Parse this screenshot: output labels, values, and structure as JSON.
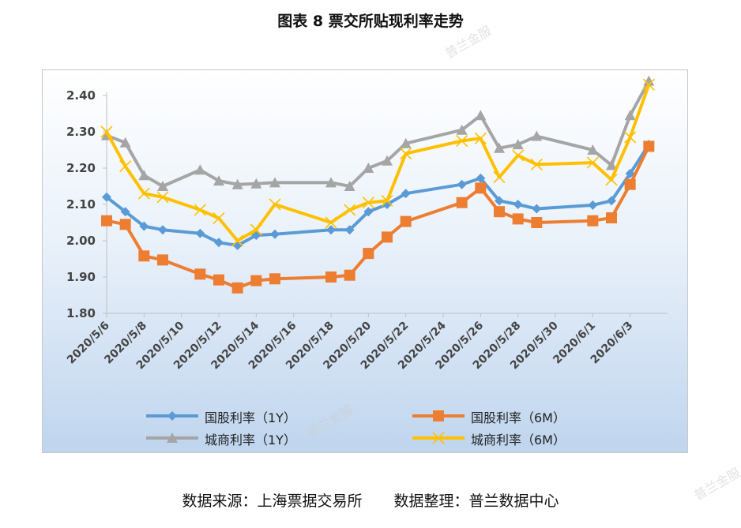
{
  "title": "图表 8 票交所贴现利率走势",
  "watermark": "普兰金服",
  "source_left": "数据来源：上海票据交易所",
  "source_right": "数据整理：普兰数据中心",
  "chart_data": {
    "type": "line",
    "title": "图表 8 票交所贴现利率走势",
    "xlabel": "",
    "ylabel": "",
    "ylim": [
      1.8,
      2.4
    ],
    "yticks": [
      "2.40",
      "2.30",
      "2.20",
      "2.10",
      "2.00",
      "1.90",
      "1.80"
    ],
    "x": [
      "2020/5/6",
      "2020/5/7",
      "2020/5/8",
      "2020/5/9",
      "2020/5/11",
      "2020/5/12",
      "2020/5/13",
      "2020/5/14",
      "2020/5/15",
      "2020/5/18",
      "2020/5/19",
      "2020/5/20",
      "2020/5/21",
      "2020/5/22",
      "2020/5/25",
      "2020/5/26",
      "2020/5/27",
      "2020/5/28",
      "2020/5/29",
      "2020/6/1",
      "2020/6/2",
      "2020/6/3",
      "2020/6/4"
    ],
    "x_day_index": [
      0,
      1,
      2,
      3,
      5,
      6,
      7,
      8,
      9,
      12,
      13,
      14,
      15,
      16,
      19,
      20,
      21,
      22,
      23,
      26,
      27,
      28,
      29
    ],
    "tick_labels": [
      "2020/5/6",
      "2020/5/8",
      "2020/5/10",
      "2020/5/12",
      "2020/5/14",
      "2020/5/16",
      "2020/5/18",
      "2020/5/20",
      "2020/5/22",
      "2020/5/24",
      "2020/5/26",
      "2020/5/28",
      "2020/5/30",
      "2020/6/1",
      "2020/6/3"
    ],
    "grid": false,
    "legend_position": "bottom",
    "series": [
      {
        "name": "国股利率（1Y）",
        "color": "#5b9bd5",
        "marker": "diamond",
        "values": [
          2.12,
          2.08,
          2.04,
          2.03,
          2.02,
          1.995,
          1.987,
          2.015,
          2.018,
          2.03,
          2.03,
          2.08,
          2.1,
          2.13,
          2.155,
          2.172,
          2.11,
          2.1,
          2.088,
          2.098,
          2.11,
          2.185,
          2.265
        ]
      },
      {
        "name": "国股利率（6M）",
        "color": "#ed7d31",
        "marker": "square",
        "values": [
          2.055,
          2.045,
          1.958,
          1.947,
          1.908,
          1.892,
          1.87,
          1.89,
          1.895,
          1.9,
          1.905,
          1.965,
          2.01,
          2.053,
          2.105,
          2.145,
          2.08,
          2.06,
          2.05,
          2.055,
          2.063,
          2.155,
          2.26
        ]
      },
      {
        "name": "城商利率（1Y）",
        "color": "#a5a5a5",
        "marker": "triangle",
        "values": [
          2.29,
          2.27,
          2.18,
          2.15,
          2.195,
          2.165,
          2.155,
          2.157,
          2.16,
          2.16,
          2.15,
          2.2,
          2.22,
          2.268,
          2.305,
          2.345,
          2.255,
          2.265,
          2.288,
          2.25,
          2.208,
          2.345,
          2.44
        ]
      },
      {
        "name": "城商利率（6M）",
        "color": "#ffc000",
        "marker": "x",
        "values": [
          2.3,
          2.205,
          2.13,
          2.12,
          2.085,
          2.062,
          2.0,
          2.03,
          2.1,
          2.05,
          2.085,
          2.105,
          2.11,
          2.24,
          2.275,
          2.282,
          2.175,
          2.235,
          2.21,
          2.215,
          2.168,
          2.285,
          2.43
        ]
      }
    ]
  }
}
